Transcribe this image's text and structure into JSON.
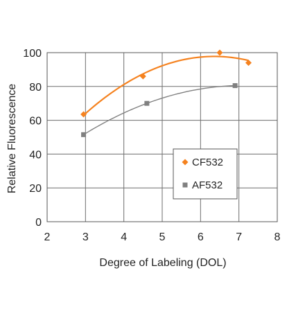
{
  "chart_data": {
    "type": "scatter",
    "title": "",
    "xlabel": "Degree of Labeling (DOL)",
    "ylabel": "Relative Fluorescence",
    "xlim": [
      2,
      8
    ],
    "ylim": [
      0,
      100
    ],
    "x_ticks": [
      2,
      3,
      4,
      5,
      6,
      7,
      8
    ],
    "y_ticks": [
      0,
      20,
      40,
      60,
      80,
      100
    ],
    "grid": true,
    "legend_position": "lower-right",
    "trendline": "polynomial",
    "series": [
      {
        "name": "CF532",
        "color": "#F5821F",
        "marker": "diamond",
        "points": [
          {
            "x": 2.95,
            "y": 63.5
          },
          {
            "x": 4.5,
            "y": 86
          },
          {
            "x": 6.5,
            "y": 100
          },
          {
            "x": 7.25,
            "y": 94
          }
        ]
      },
      {
        "name": "AF532",
        "color": "#808080",
        "marker": "square",
        "points": [
          {
            "x": 2.95,
            "y": 51.5
          },
          {
            "x": 4.6,
            "y": 70
          },
          {
            "x": 6.9,
            "y": 80.5
          }
        ]
      }
    ]
  }
}
